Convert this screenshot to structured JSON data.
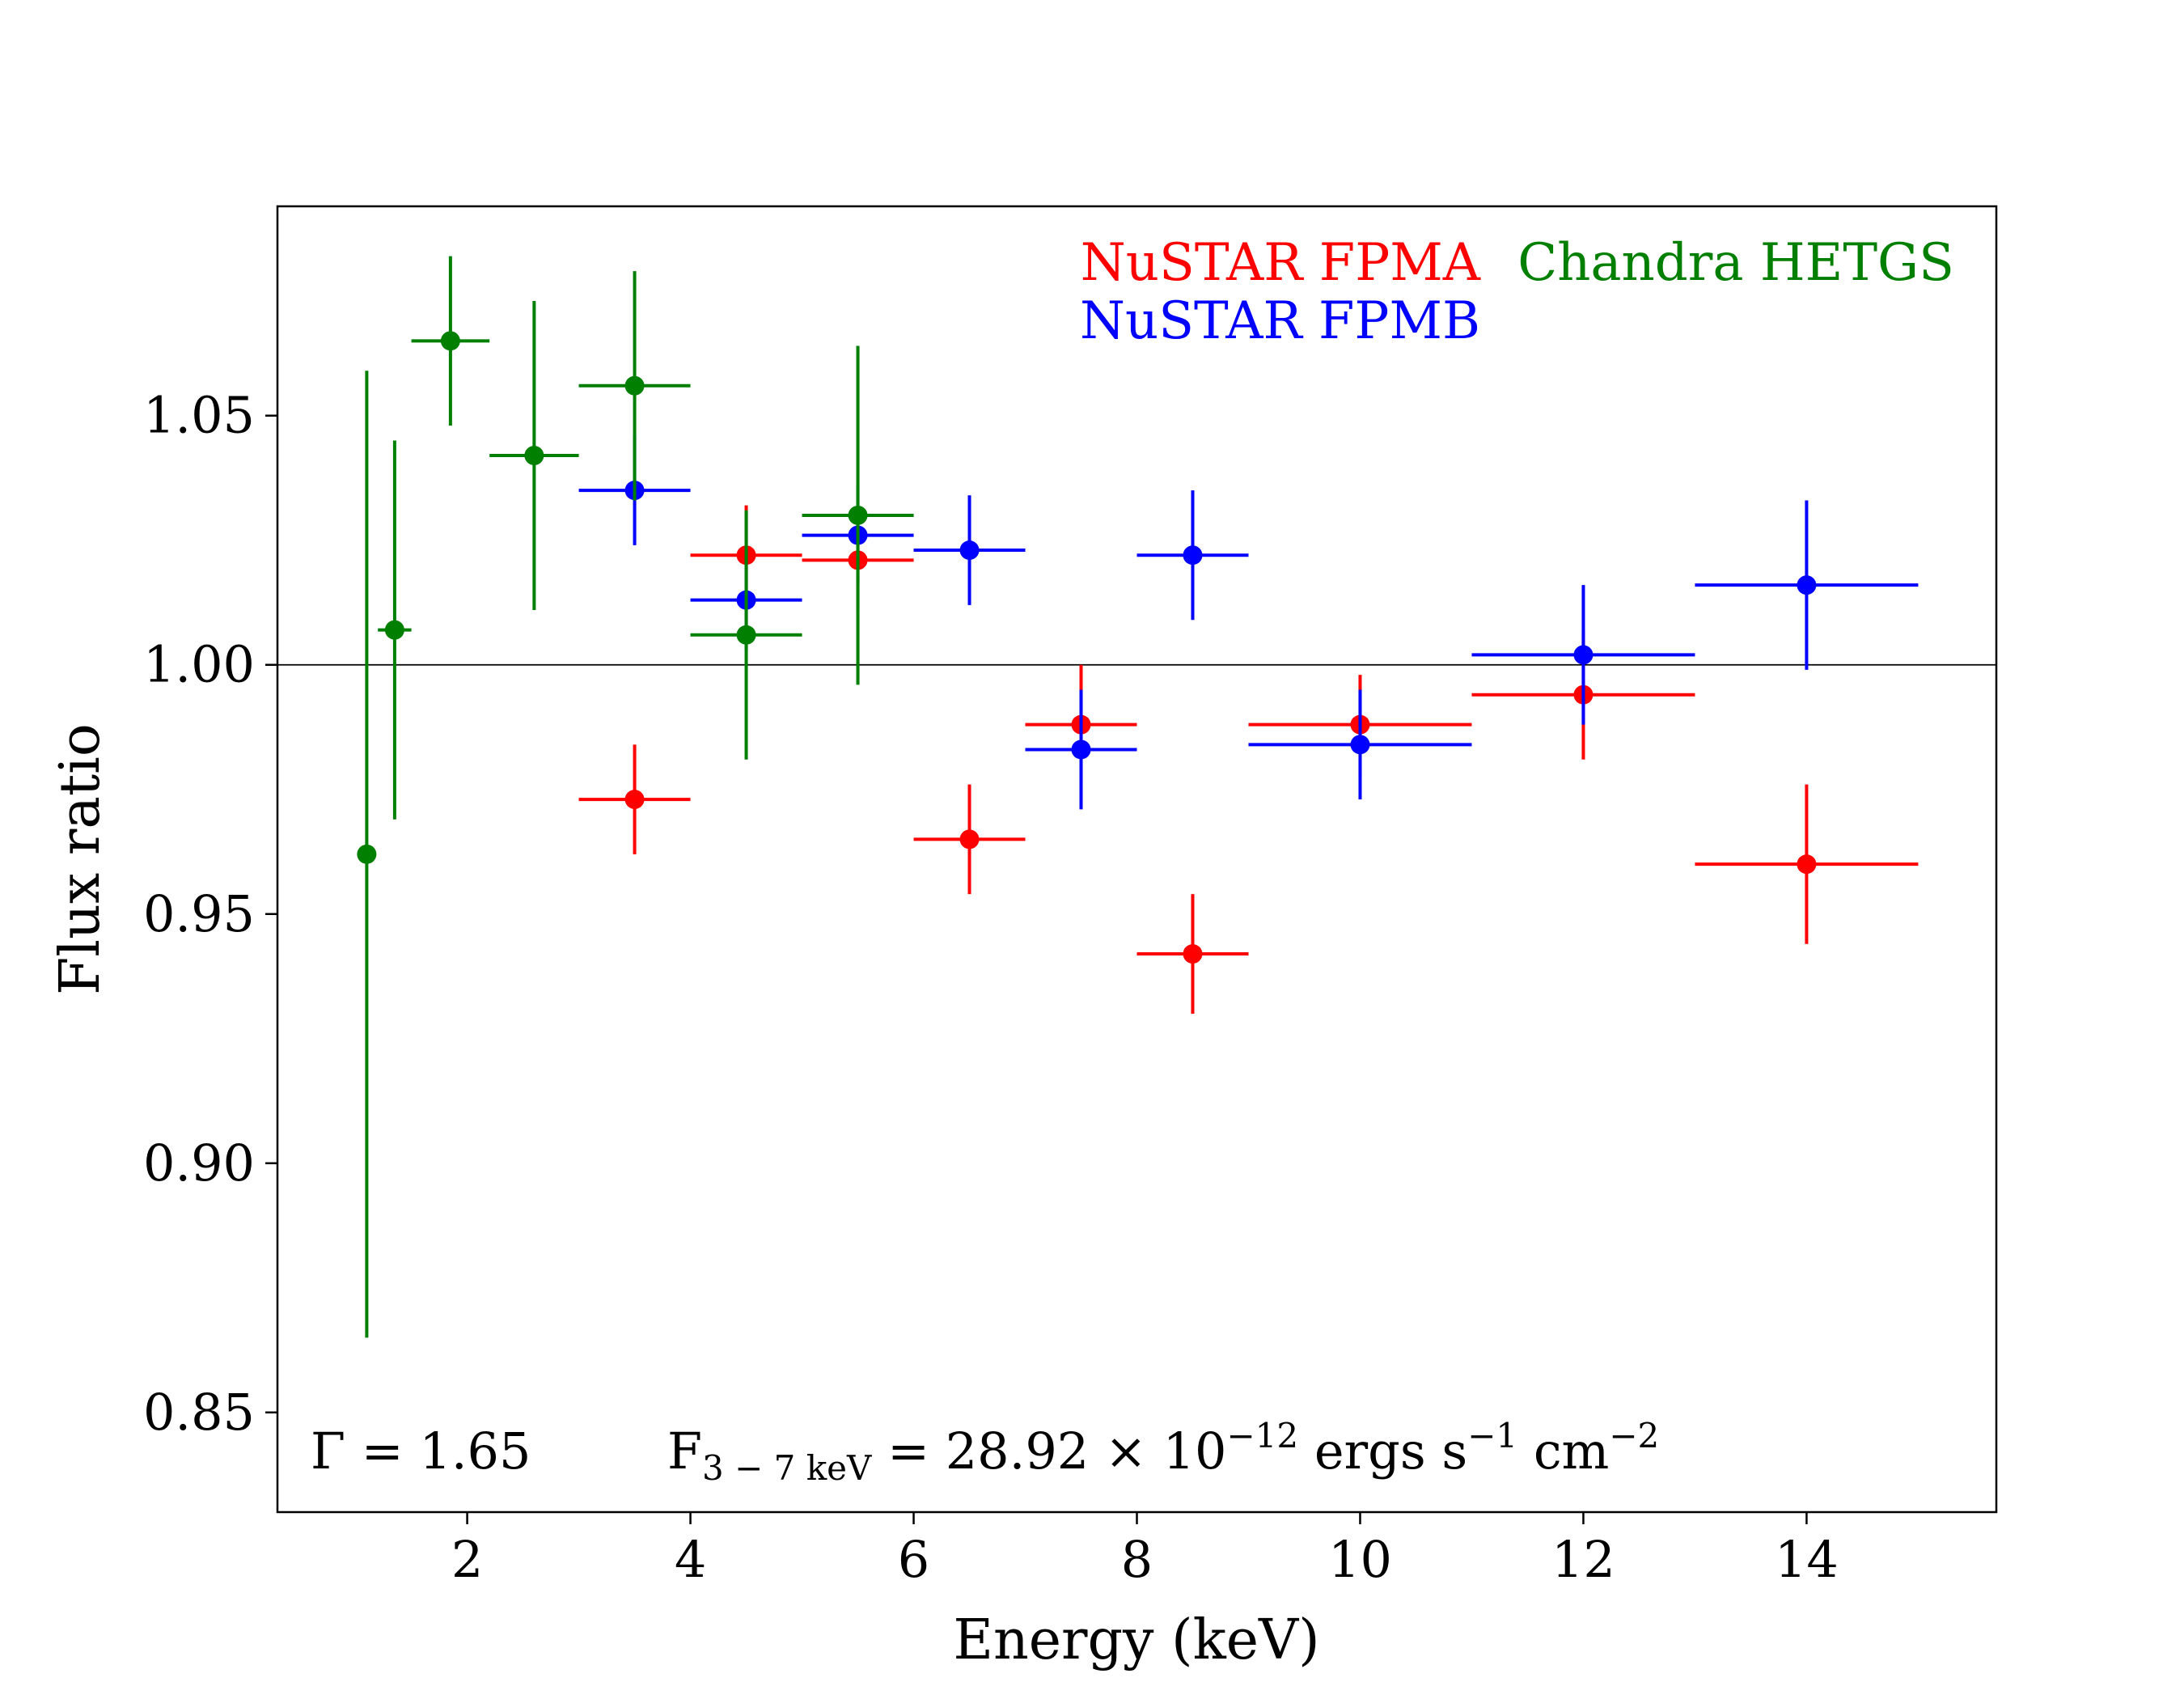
{
  "chart_data": {
    "type": "scatter",
    "xlabel": "Energy (keV)",
    "ylabel": "Flux ratio",
    "xlim": [
      0.3,
      15.7
    ],
    "ylim": [
      0.83,
      1.092
    ],
    "xticks": [
      "2",
      "4",
      "6",
      "8",
      "10",
      "12",
      "14"
    ],
    "xtick_values": [
      2,
      4,
      6,
      8,
      10,
      12,
      14
    ],
    "yticks": [
      "0.85",
      "0.90",
      "0.95",
      "1.00",
      "1.05"
    ],
    "ytick_values": [
      0.85,
      0.9,
      0.95,
      1.0,
      1.05
    ],
    "reference_line": 1.0,
    "grid": false,
    "legend_position": "top-right",
    "series": [
      {
        "name": "NuSTAR FPMA",
        "color": "#ff0000",
        "points": [
          {
            "x": 3.5,
            "y": 0.973,
            "xerr": 0.5,
            "yerr": [
              0.011,
              0.011
            ]
          },
          {
            "x": 4.5,
            "y": 1.022,
            "xerr": 0.5,
            "yerr": [
              0.01,
              0.01
            ]
          },
          {
            "x": 5.5,
            "y": 1.021,
            "xerr": 0.5,
            "yerr": [
              0.01,
              0.01
            ]
          },
          {
            "x": 6.5,
            "y": 0.965,
            "xerr": 0.5,
            "yerr": [
              0.011,
              0.011
            ]
          },
          {
            "x": 7.5,
            "y": 0.988,
            "xerr": 0.5,
            "yerr": [
              0.012,
              0.012
            ]
          },
          {
            "x": 8.5,
            "y": 0.942,
            "xerr": 0.5,
            "yerr": [
              0.012,
              0.012
            ]
          },
          {
            "x": 10.0,
            "y": 0.988,
            "xerr": 1.0,
            "yerr": [
              0.01,
              0.01
            ]
          },
          {
            "x": 12.0,
            "y": 0.994,
            "xerr": 1.0,
            "yerr": [
              0.013,
              0.013
            ]
          },
          {
            "x": 14.0,
            "y": 0.96,
            "xerr": 1.0,
            "yerr": [
              0.016,
              0.016
            ]
          }
        ]
      },
      {
        "name": "NuSTAR FPMB",
        "color": "#0000ff",
        "points": [
          {
            "x": 3.5,
            "y": 1.035,
            "xerr": 0.5,
            "yerr": [
              0.011,
              0.011
            ]
          },
          {
            "x": 4.5,
            "y": 1.013,
            "xerr": 0.5,
            "yerr": [
              0.01,
              0.01
            ]
          },
          {
            "x": 5.5,
            "y": 1.026,
            "xerr": 0.5,
            "yerr": [
              0.01,
              0.01
            ]
          },
          {
            "x": 6.5,
            "y": 1.023,
            "xerr": 0.5,
            "yerr": [
              0.011,
              0.011
            ]
          },
          {
            "x": 7.5,
            "y": 0.983,
            "xerr": 0.5,
            "yerr": [
              0.012,
              0.012
            ]
          },
          {
            "x": 8.5,
            "y": 1.022,
            "xerr": 0.5,
            "yerr": [
              0.013,
              0.013
            ]
          },
          {
            "x": 10.0,
            "y": 0.984,
            "xerr": 1.0,
            "yerr": [
              0.011,
              0.011
            ]
          },
          {
            "x": 12.0,
            "y": 1.002,
            "xerr": 1.0,
            "yerr": [
              0.014,
              0.014
            ]
          },
          {
            "x": 14.0,
            "y": 1.016,
            "xerr": 1.0,
            "yerr": [
              0.017,
              0.017
            ]
          }
        ]
      },
      {
        "name": "Chandra HETGS",
        "color": "#007f00",
        "points": [
          {
            "x": 1.1,
            "y": 0.962,
            "xerr": 0.05,
            "yerr": [
              0.097,
              0.097
            ]
          },
          {
            "x": 1.35,
            "y": 1.007,
            "xerr": 0.15,
            "yerr": [
              0.038,
              0.038
            ]
          },
          {
            "x": 1.85,
            "y": 1.065,
            "xerr": 0.35,
            "yerr": [
              0.017,
              0.017
            ]
          },
          {
            "x": 2.6,
            "y": 1.042,
            "xerr": 0.4,
            "yerr": [
              0.031,
              0.031
            ]
          },
          {
            "x": 3.5,
            "y": 1.056,
            "xerr": 0.5,
            "yerr": [
              0.023,
              0.023
            ]
          },
          {
            "x": 4.5,
            "y": 1.006,
            "xerr": 0.5,
            "yerr": [
              0.025,
              0.025
            ]
          },
          {
            "x": 5.5,
            "y": 1.03,
            "xerr": 0.5,
            "yerr": [
              0.034,
              0.034
            ]
          }
        ]
      }
    ],
    "annotations": {
      "gamma": {
        "symbol": "Γ",
        "text": " = 1.65"
      },
      "flux": {
        "prefix": "F",
        "sub": "3 − 7  keV",
        "mid": " = 28.92 × 10",
        "exp1": "−12",
        "mid2": " ergs s",
        "exp2": "−1",
        "mid3": " cm",
        "exp3": "−2"
      }
    }
  }
}
